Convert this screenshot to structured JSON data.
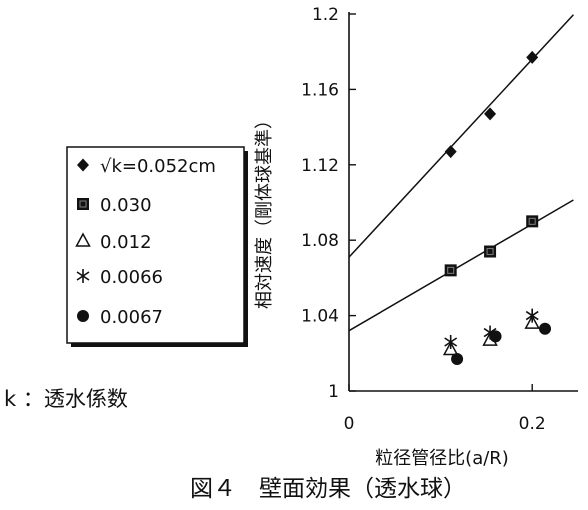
{
  "figure": {
    "caption": "図４　壁面効果（透水球）",
    "note": "k ：透水係数"
  },
  "chart_data": {
    "type": "scatter",
    "title": "",
    "xlabel": "粒径管径比(a/R)",
    "ylabel": "相対速度（剛体球基準）",
    "xlim": [
      0,
      0.25
    ],
    "ylim": [
      1.0,
      1.2
    ],
    "xticks": [
      0,
      0.2
    ],
    "xtick_labels": [
      "0",
      "0.2"
    ],
    "yticks": [
      1.0,
      1.04,
      1.08,
      1.12,
      1.16,
      1.2
    ],
    "ytick_labels": [
      "1",
      "1.04",
      "1.08",
      "1.12",
      "1.16",
      "1.2"
    ],
    "grid": false,
    "legend_position": "left",
    "series": [
      {
        "name": "√k=0.052cm",
        "marker": "diamond",
        "x": [
          0.111,
          0.154,
          0.2
        ],
        "y": [
          1.127,
          1.147,
          1.177
        ],
        "fit": {
          "intercept": 1.071,
          "slope": 0.525
        }
      },
      {
        "name": "0.030",
        "marker": "square",
        "x": [
          0.111,
          0.154,
          0.2
        ],
        "y": [
          1.064,
          1.074,
          1.09
        ],
        "fit": {
          "intercept": 1.032,
          "slope": 0.283
        }
      },
      {
        "name": "0.012",
        "marker": "triangle",
        "x": [
          0.111,
          0.154,
          0.2
        ],
        "y": [
          1.022,
          1.027,
          1.036
        ]
      },
      {
        "name": "0.0066",
        "marker": "asterisk",
        "x": [
          0.111,
          0.154,
          0.2
        ],
        "y": [
          1.026,
          1.031,
          1.04
        ]
      },
      {
        "name": "0.0067",
        "marker": "circle",
        "x": [
          0.118,
          0.16,
          0.214
        ],
        "y": [
          1.017,
          1.029,
          1.033
        ]
      }
    ]
  }
}
